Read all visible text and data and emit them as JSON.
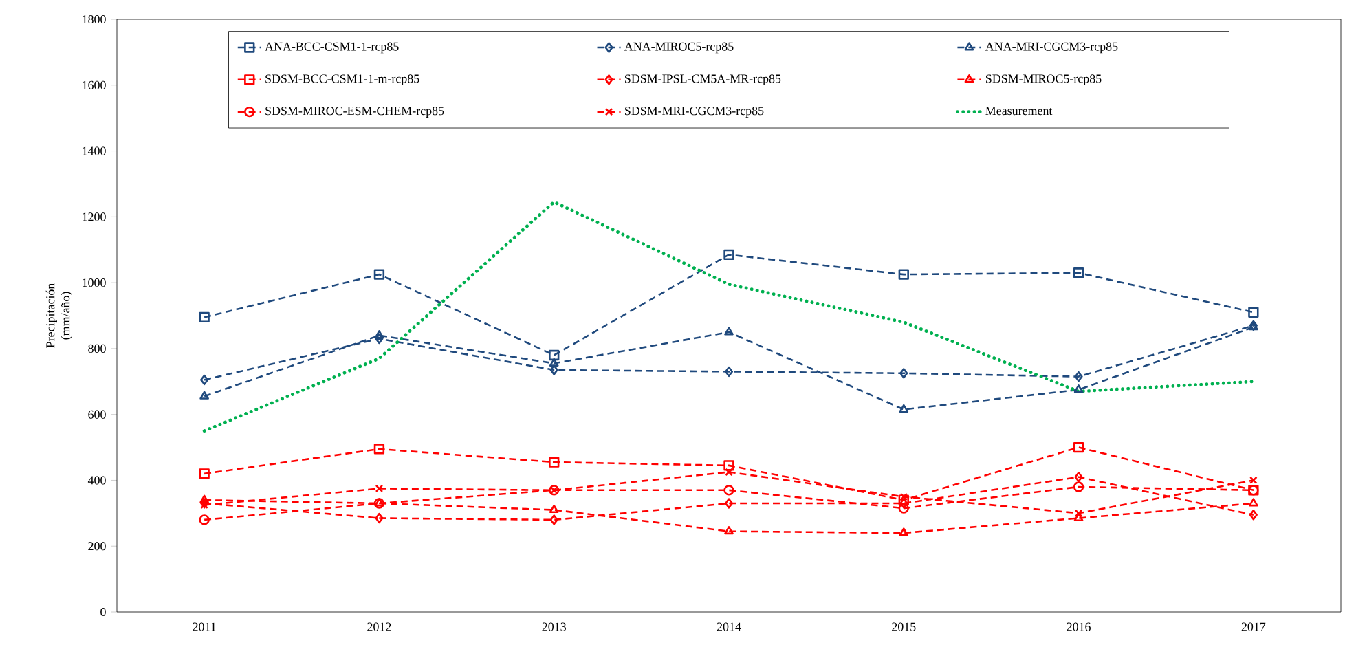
{
  "chart_data": {
    "type": "line",
    "ylabel": "Precipitación\n(mm/año)",
    "categories": [
      "2011",
      "2012",
      "2013",
      "2014",
      "2015",
      "2016",
      "2017"
    ],
    "ylim": [
      0,
      1800
    ],
    "yticks": [
      0,
      200,
      400,
      600,
      800,
      1000,
      1200,
      1400,
      1600,
      1800
    ],
    "grid": false,
    "legend": "top",
    "series": [
      {
        "name": "ANA-BCC-CSM1-1-rcp85",
        "color": "#1f497d",
        "marker": "square",
        "line_style": "dashed",
        "values": [
          895,
          1025,
          780,
          1085,
          1025,
          1030,
          910
        ]
      },
      {
        "name": "ANA-MIROC5-rcp85",
        "color": "#1f497d",
        "marker": "diamond",
        "line_style": "dashed",
        "values": [
          705,
          830,
          735,
          730,
          725,
          715,
          870
        ]
      },
      {
        "name": "ANA-MRI-CGCM3-rcp85",
        "color": "#1f497d",
        "marker": "triangle",
        "line_style": "dashed",
        "values": [
          655,
          840,
          755,
          850,
          615,
          675,
          865
        ]
      },
      {
        "name": "SDSM-BCC-CSM1-1-m-rcp85",
        "color": "#ff0000",
        "marker": "square",
        "line_style": "dashed",
        "values": [
          420,
          495,
          455,
          445,
          340,
          500,
          370
        ]
      },
      {
        "name": "SDSM-IPSL-CM5A-MR-rcp85",
        "color": "#ff0000",
        "marker": "diamond",
        "line_style": "dashed",
        "values": [
          330,
          285,
          280,
          330,
          330,
          410,
          295
        ]
      },
      {
        "name": "SDSM-MIROC5-rcp85",
        "color": "#ff0000",
        "marker": "triangle",
        "line_style": "dashed",
        "values": [
          340,
          330,
          310,
          245,
          240,
          285,
          330
        ]
      },
      {
        "name": "SDSM-MIROC-ESM-CHEM-rcp85",
        "color": "#ff0000",
        "marker": "circle",
        "line_style": "dashed",
        "values": [
          280,
          330,
          370,
          370,
          315,
          380,
          370
        ]
      },
      {
        "name": "SDSM-MRI-CGCM3-rcp85",
        "color": "#ff0000",
        "marker": "cross",
        "line_style": "dashed",
        "values": [
          325,
          375,
          370,
          425,
          350,
          300,
          400
        ]
      },
      {
        "name": "Measurement",
        "color": "#00b050",
        "marker": "none",
        "line_style": "dotted",
        "values": [
          550,
          770,
          1245,
          995,
          880,
          670,
          700
        ]
      }
    ]
  }
}
